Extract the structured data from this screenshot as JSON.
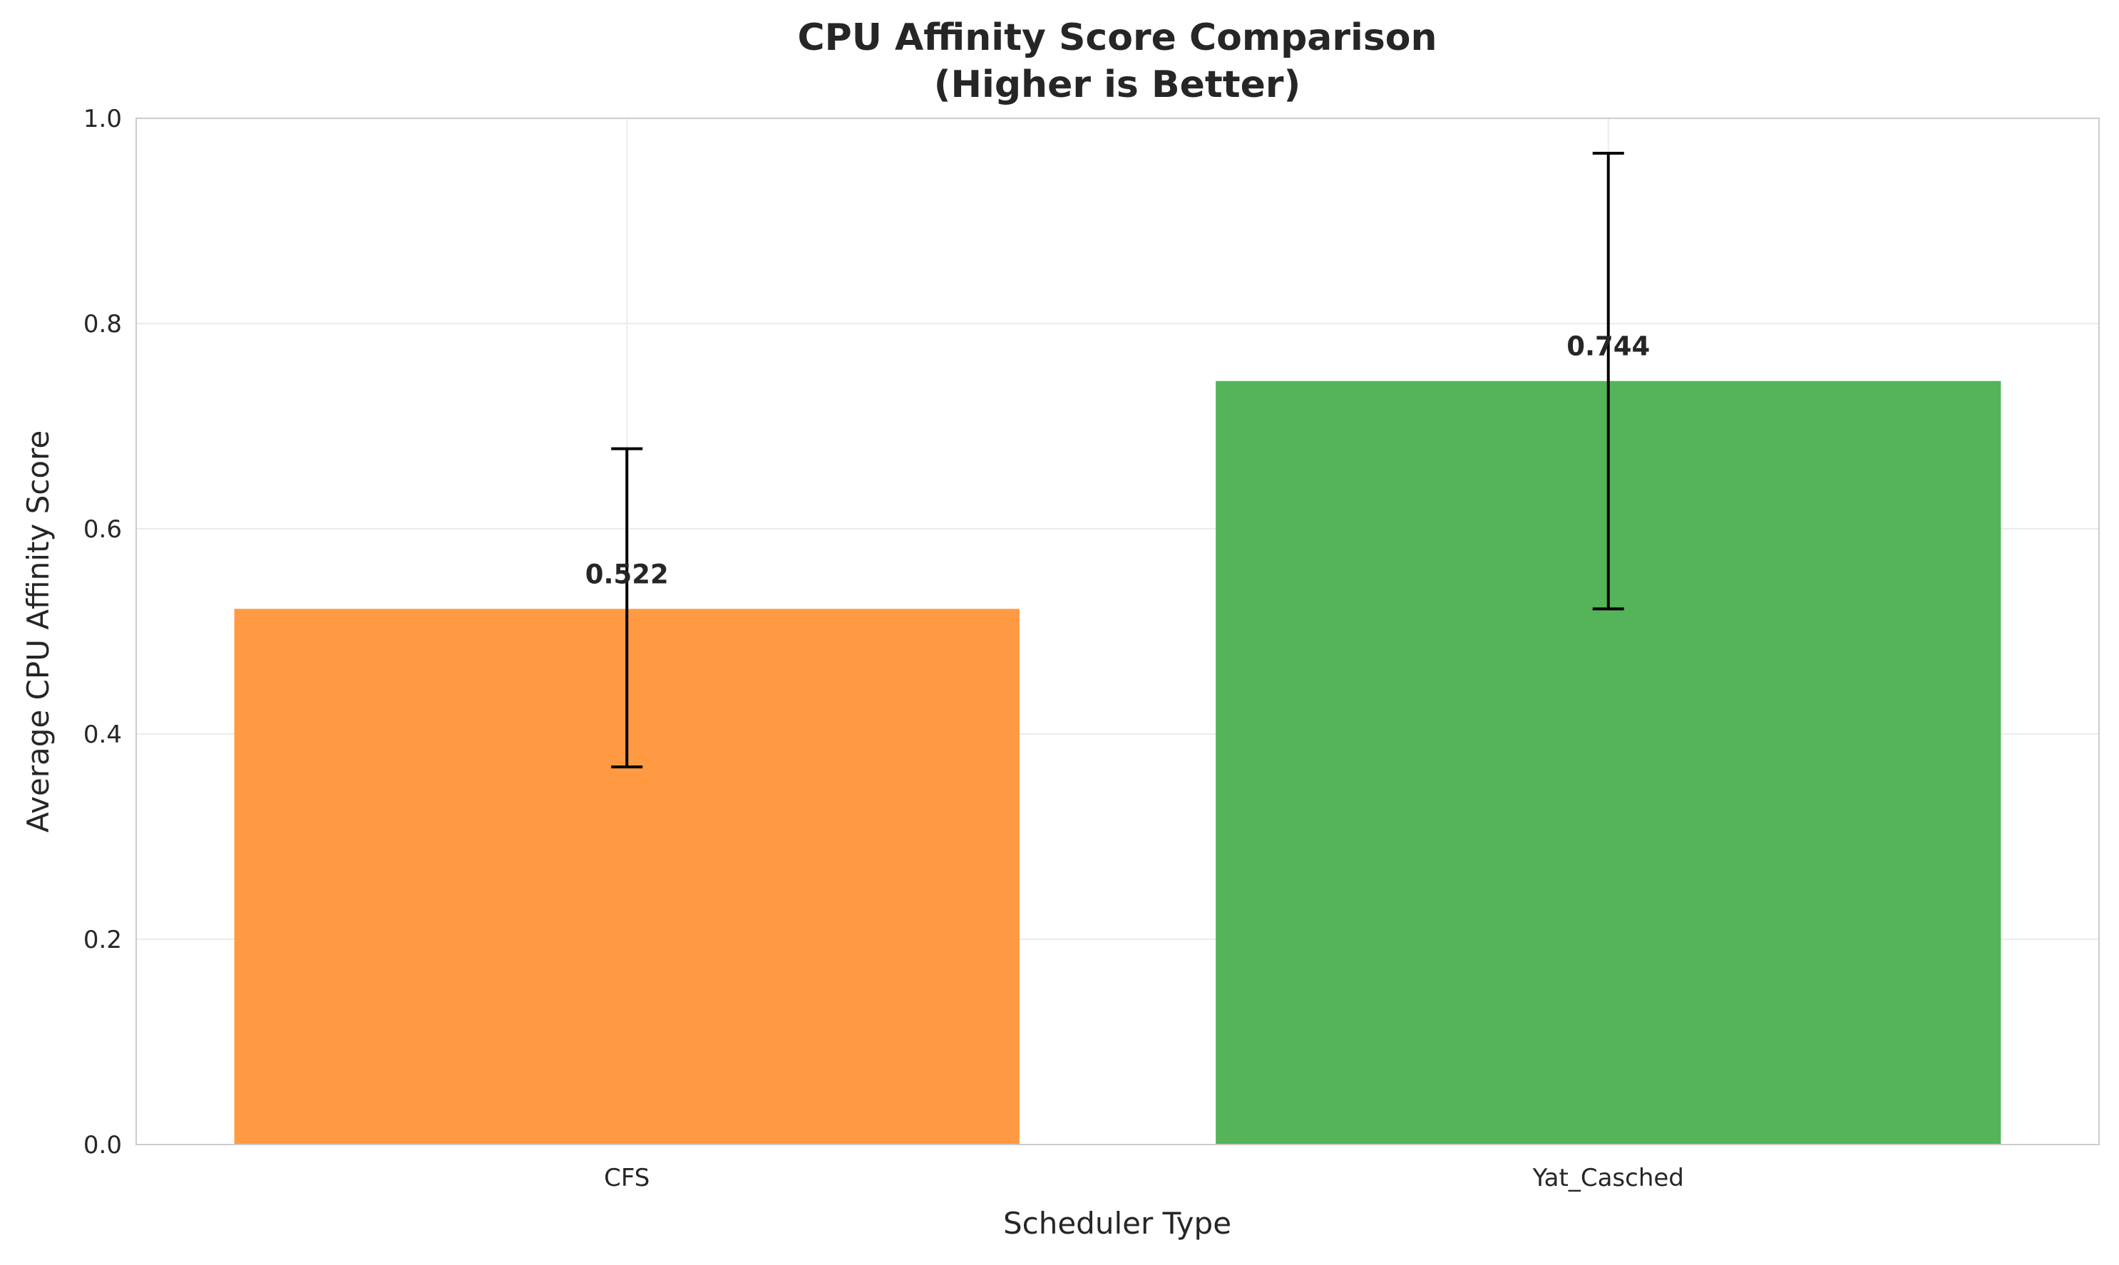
{
  "chart_data": {
    "type": "bar",
    "title_line1": "CPU Affinity Score Comparison",
    "title_line2": "(Higher is Better)",
    "xlabel": "Scheduler Type",
    "ylabel": "Average CPU Affinity Score",
    "categories": [
      "CFS",
      "Yat_Casched"
    ],
    "values": [
      0.522,
      0.744
    ],
    "error_low": [
      0.368,
      0.522
    ],
    "error_high": [
      0.678,
      0.966
    ],
    "value_labels": [
      "0.522",
      "0.744"
    ],
    "colors": [
      "#ff9538",
      "#4caf50"
    ],
    "ylim": [
      0.0,
      1.0
    ],
    "yticks": [
      0.0,
      0.2,
      0.4,
      0.6,
      0.8,
      1.0
    ],
    "ytick_labels": [
      "0.0",
      "0.2",
      "0.4",
      "0.6",
      "0.8",
      "1.0"
    ],
    "grid": true,
    "legend": false
  }
}
